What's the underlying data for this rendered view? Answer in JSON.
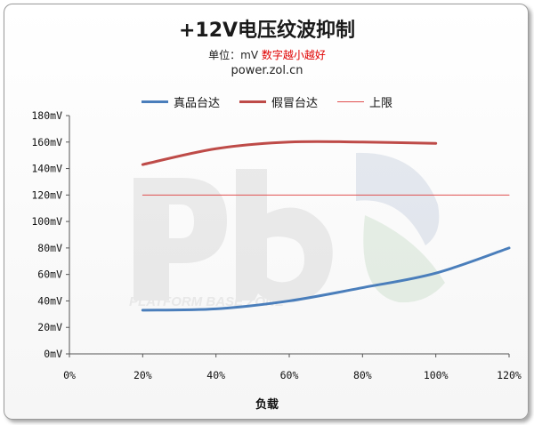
{
  "header": {
    "title": "+12V电压纹波抑制",
    "unit_label": "单位：mV",
    "note": "数字越小越好",
    "source": "power.zol.cn",
    "watermark_text": "PLATFORM BASE ZONE"
  },
  "chart_data": {
    "type": "line",
    "title": "+12V电压纹波抑制",
    "xlabel": "负载",
    "ylabel": "",
    "x_ticks": [
      "0%",
      "20%",
      "40%",
      "60%",
      "80%",
      "100%",
      "120%"
    ],
    "y_ticks": [
      "0mV",
      "20mV",
      "40mV",
      "60mV",
      "80mV",
      "100mV",
      "120mV",
      "140mV",
      "160mV",
      "180mV"
    ],
    "xlim": [
      0,
      120
    ],
    "ylim": [
      0,
      180
    ],
    "grid": false,
    "legend_position": "top",
    "series": [
      {
        "name": "真品台达",
        "color": "#4a7ebb",
        "x": [
          20,
          40,
          60,
          80,
          100,
          120
        ],
        "values": [
          33,
          34,
          40,
          50,
          61,
          80
        ]
      },
      {
        "name": "假冒台达",
        "color": "#be4b48",
        "x": [
          20,
          40,
          60,
          80,
          100
        ],
        "values": [
          143,
          155,
          160,
          160,
          159
        ]
      },
      {
        "name": "上限",
        "color": "#e05050",
        "x": [
          20,
          120
        ],
        "values": [
          120,
          120
        ]
      }
    ]
  }
}
